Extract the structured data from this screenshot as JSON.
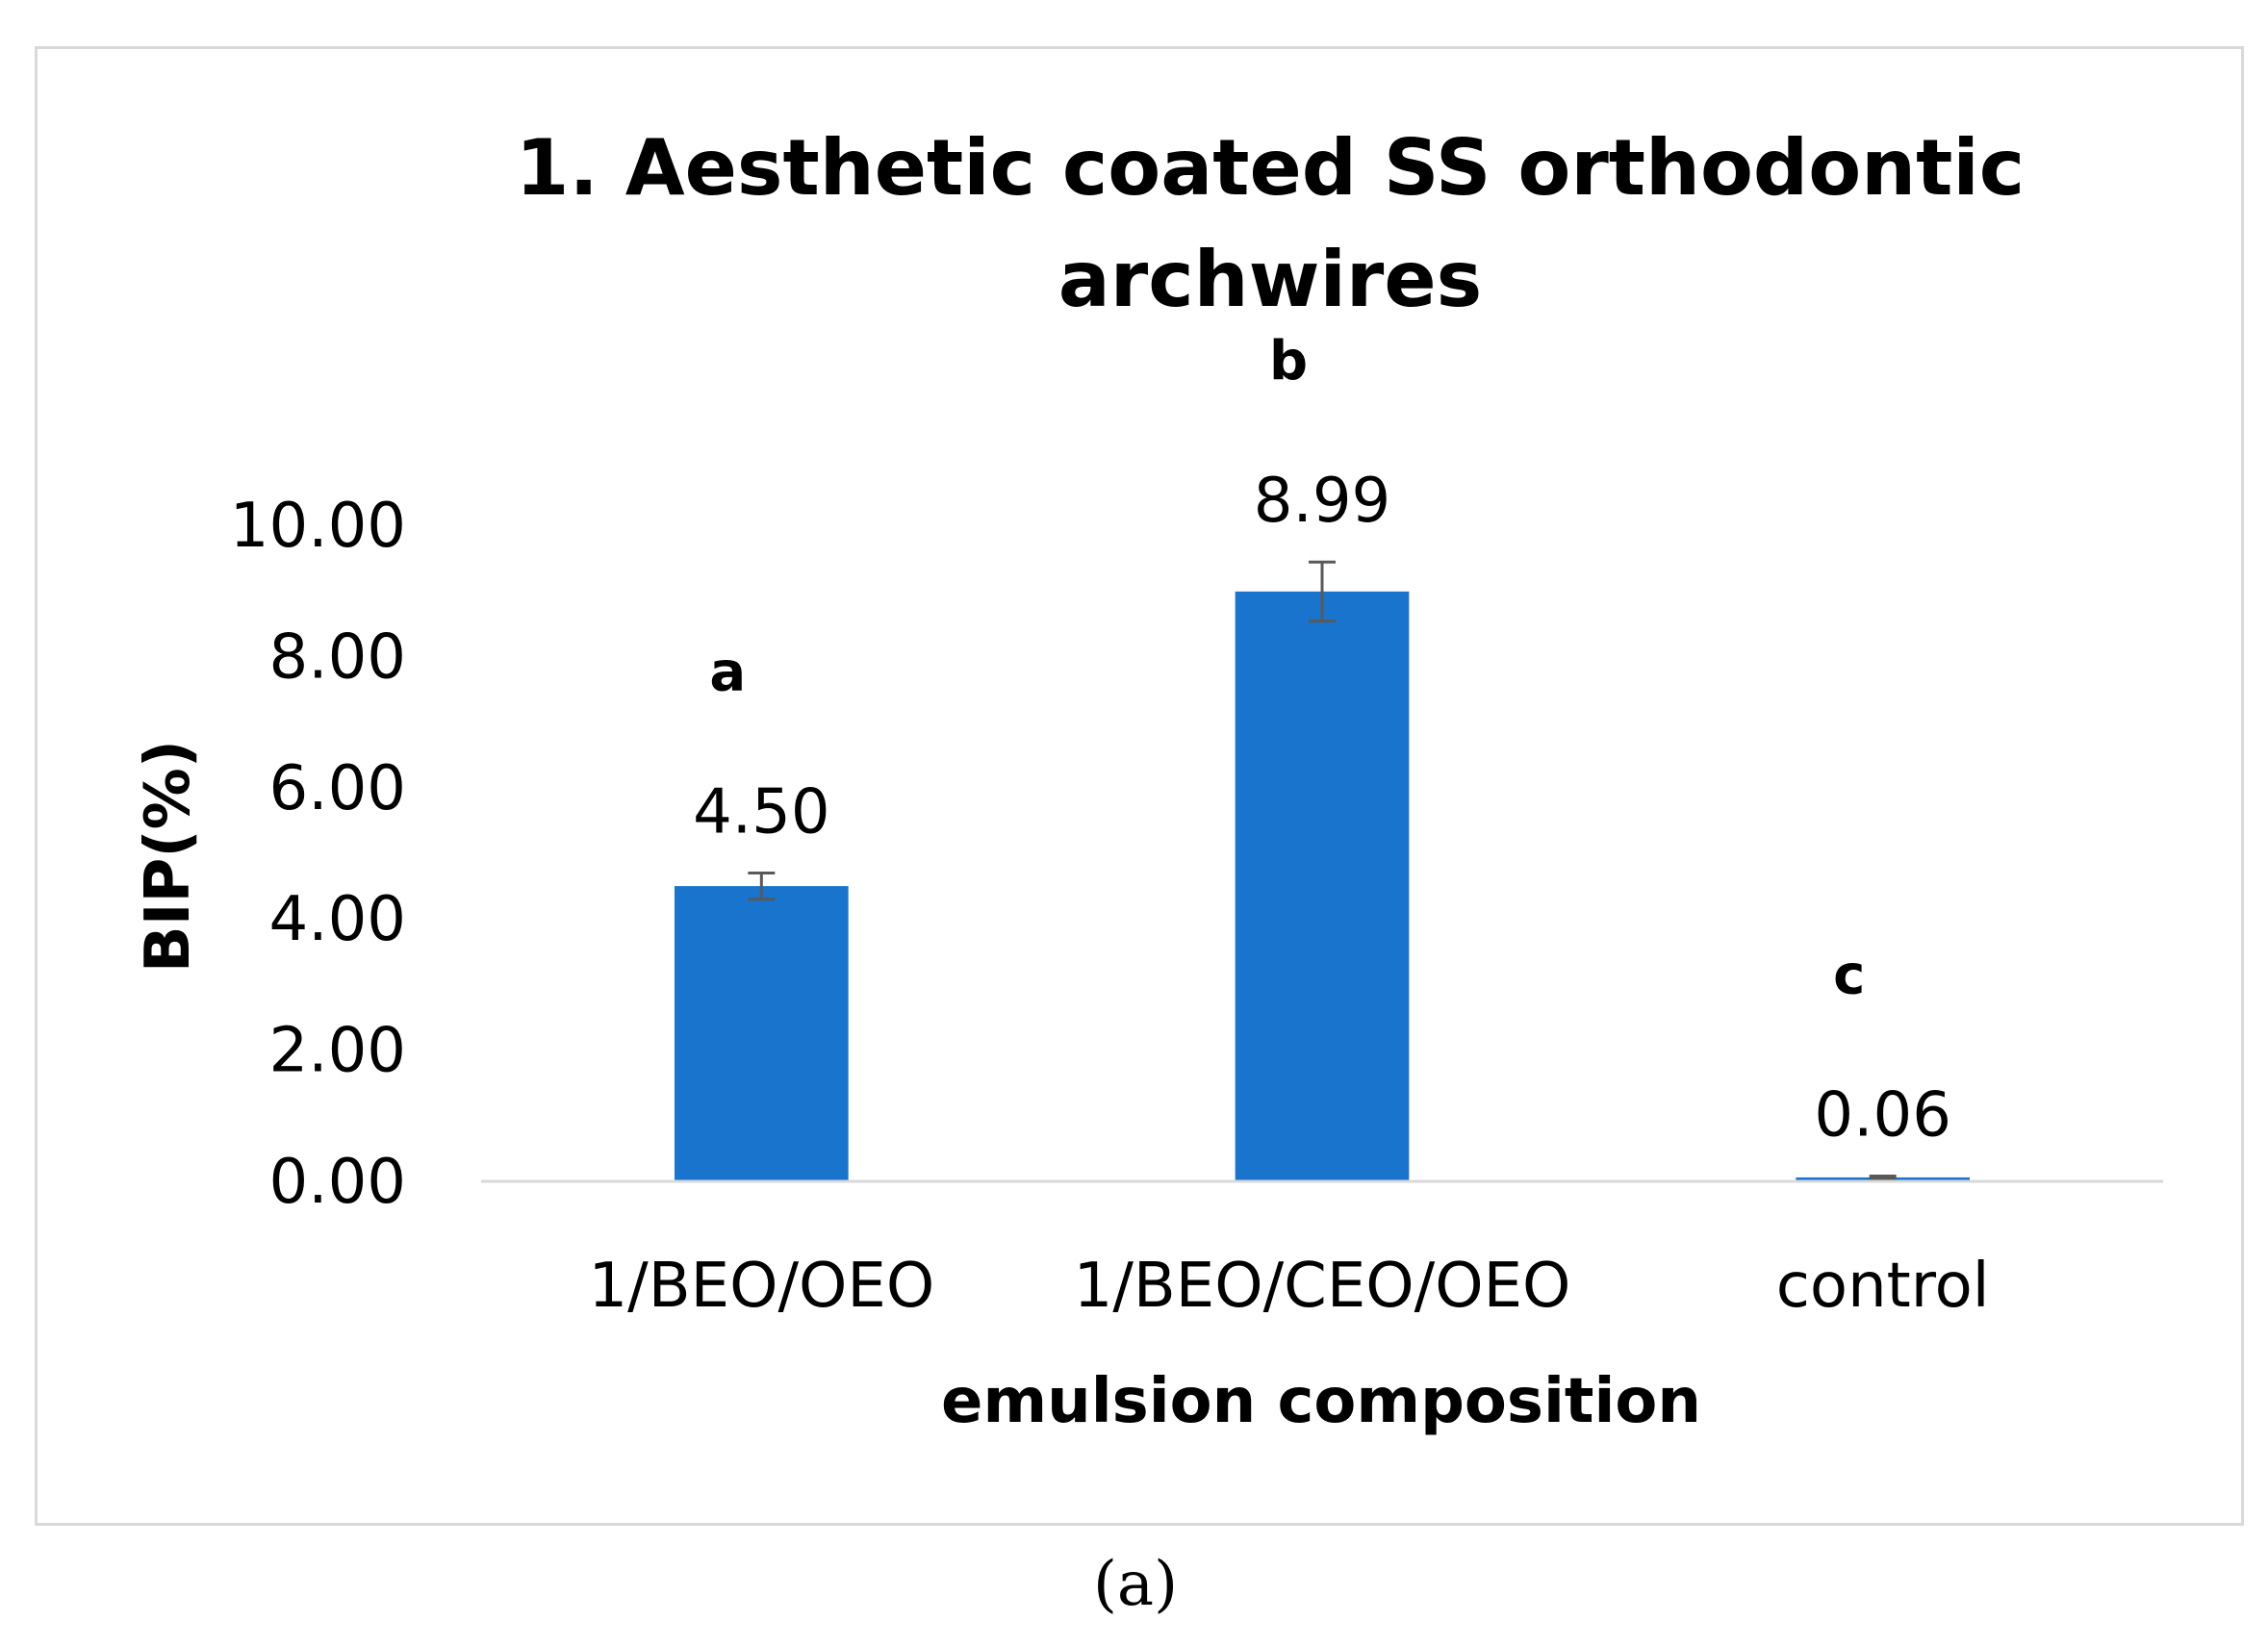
{
  "chart_data": {
    "type": "bar",
    "title_lines": [
      "1. Aesthetic coated SS orthodontic",
      "archwires"
    ],
    "categories": [
      "1/BEO/OEO",
      "1/BEO/CEO/OEO",
      "control"
    ],
    "values": [
      4.5,
      8.99,
      0.06
    ],
    "value_labels": [
      "4.50",
      "8.99",
      "0.06"
    ],
    "error": [
      0.2,
      0.45,
      0.02
    ],
    "significance_letters": [
      "a",
      "b",
      "c"
    ],
    "xlabel": "emulsion composition",
    "ylabel": "BIP(%)",
    "ylim": [
      0,
      10
    ],
    "y_ticks": [
      0,
      2,
      4,
      6,
      8,
      10
    ],
    "y_tick_labels": [
      "0.00",
      "2.00",
      "4.00",
      "6.00",
      "8.00",
      "10.00"
    ],
    "grid": false,
    "bar_color": "#1874CD",
    "error_bar_color": "#595959",
    "axis_color": "#d9d9d9",
    "caption": "(a)"
  }
}
